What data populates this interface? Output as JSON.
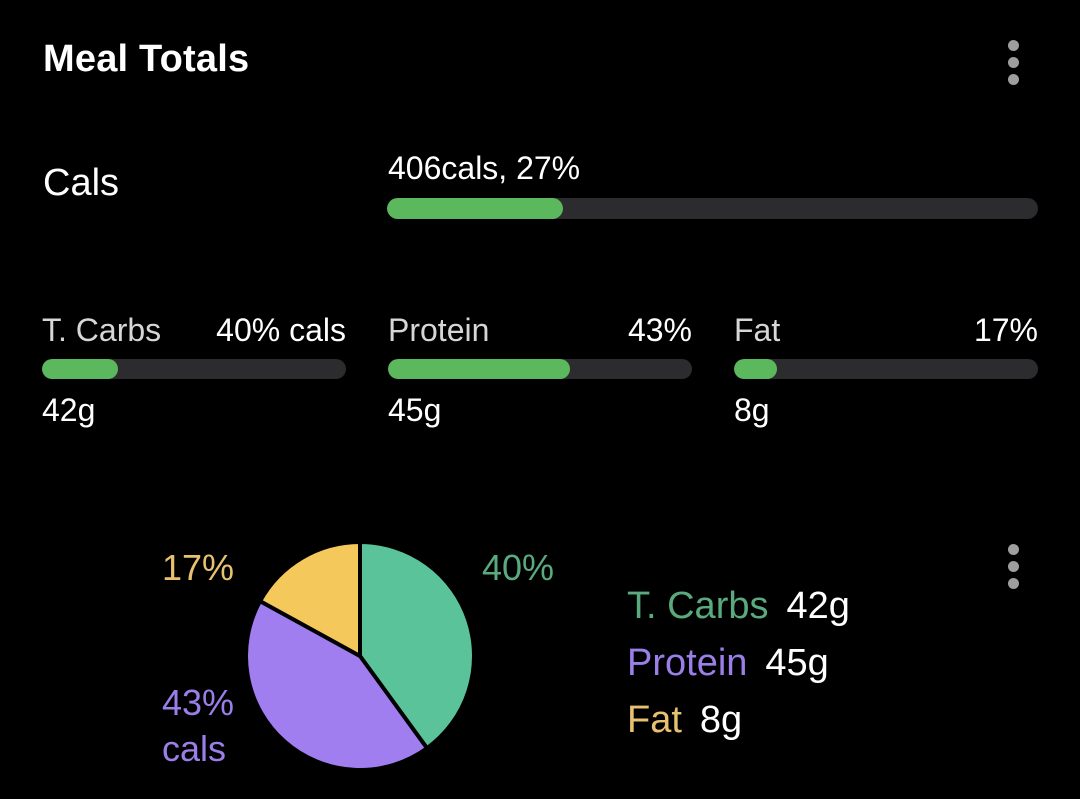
{
  "header": {
    "title": "Meal Totals",
    "menu_icon": "more-vert-icon"
  },
  "calories": {
    "label": "Cals",
    "value_text": "406cals, 27%",
    "progress": 0.27
  },
  "macros": [
    {
      "name": "T. Carbs",
      "pct_text": "40% cals",
      "grams": "42g",
      "progress": 0.25
    },
    {
      "name": "Protein",
      "pct_text": "43%",
      "grams": "45g",
      "progress": 0.6
    },
    {
      "name": "Fat",
      "pct_text": "17%",
      "grams": "8g",
      "progress": 0.14
    }
  ],
  "chart_data": {
    "type": "pie",
    "slices": [
      {
        "label": "T. Carbs",
        "percent": 40,
        "color": "#5ac39a"
      },
      {
        "label": "Protein",
        "percent": 43,
        "color": "#a07ef0"
      },
      {
        "label": "Fat",
        "percent": 17,
        "color": "#f5c85b"
      }
    ],
    "slice_labels": {
      "carbs": "40%",
      "protein_pct": "43%",
      "protein_unit": "cals",
      "fat": "17%"
    },
    "label_colors": {
      "carbs": "#5aa97f",
      "protein": "#9b7fe8",
      "fat": "#e8c170"
    },
    "legend": [
      {
        "name": "T. Carbs",
        "value": "42g"
      },
      {
        "name": "Protein",
        "value": "45g"
      },
      {
        "name": "Fat",
        "value": "8g"
      }
    ]
  },
  "colors": {
    "bar_fill": "#5cb85c",
    "bar_track": "#2c2c2e",
    "background": "#000000"
  }
}
